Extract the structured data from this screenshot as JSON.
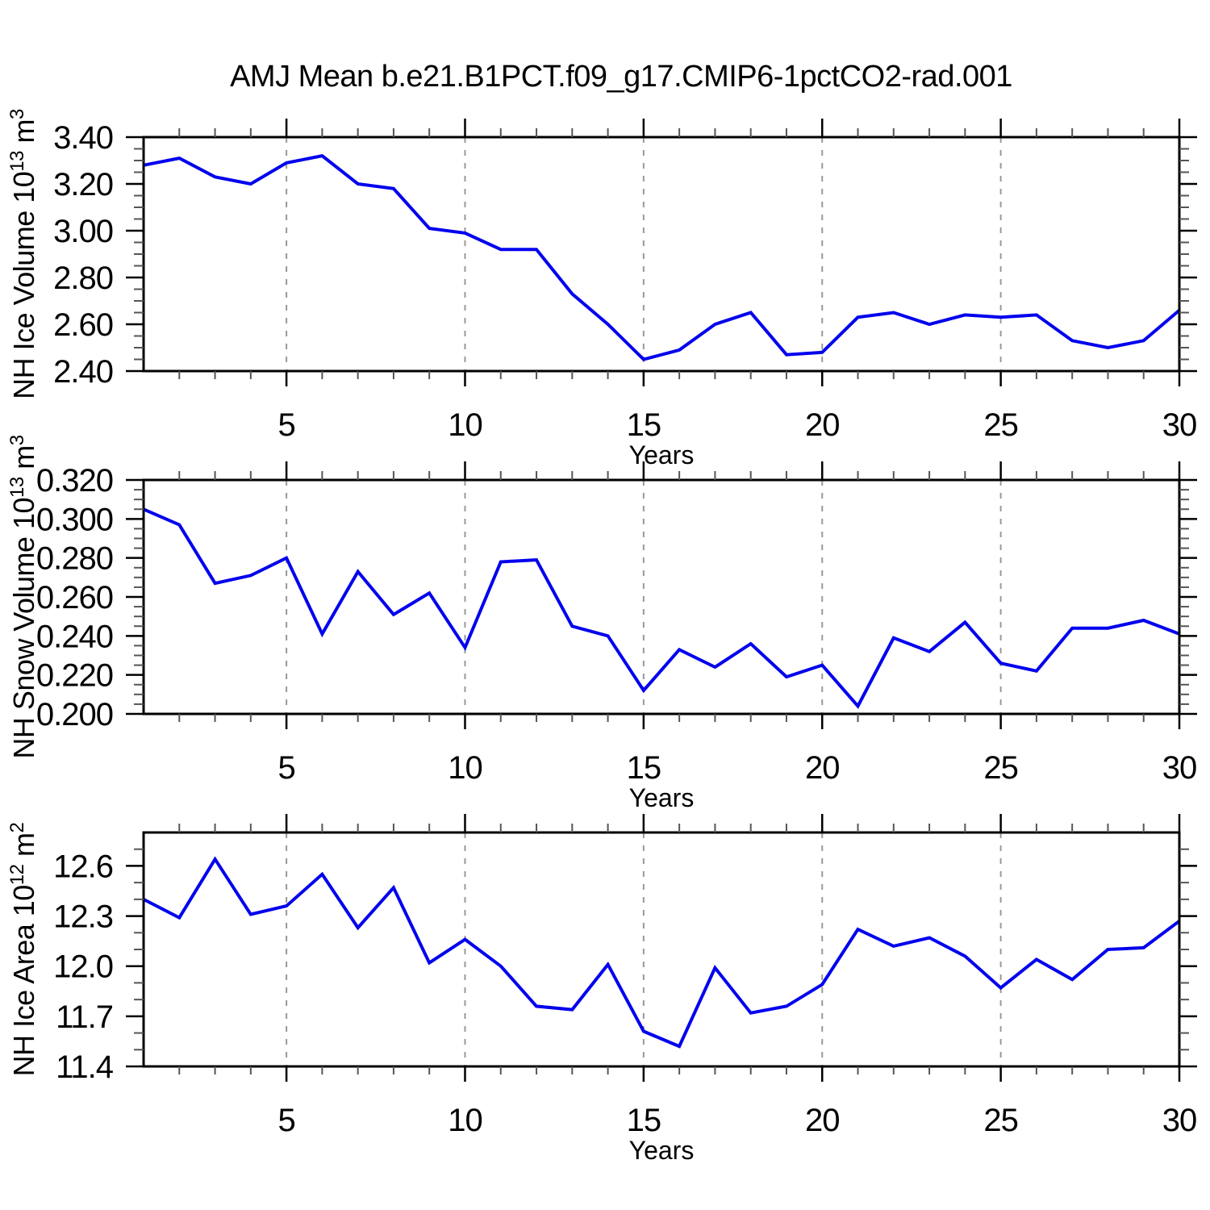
{
  "title": "AMJ Mean b.e21.B1PCT.f09_g17.CMIP6-1pctCO2-rad.001",
  "chart_data": [
    {
      "type": "line",
      "panel": "top",
      "ylabel": {
        "text": "NH Ice Volume 10",
        "exp": "13",
        "unit": " m",
        "unit_exp": "3"
      },
      "xlabel": "Years",
      "x": [
        1,
        2,
        3,
        4,
        5,
        6,
        7,
        8,
        9,
        10,
        11,
        12,
        13,
        14,
        15,
        16,
        17,
        18,
        19,
        20,
        21,
        22,
        23,
        24,
        25,
        26,
        27,
        28,
        29,
        30
      ],
      "values": [
        3.28,
        3.31,
        3.23,
        3.2,
        3.29,
        3.32,
        3.2,
        3.18,
        3.01,
        2.99,
        2.92,
        2.92,
        2.73,
        2.6,
        2.45,
        2.49,
        2.6,
        2.65,
        2.47,
        2.48,
        2.63,
        2.65,
        2.6,
        2.64,
        2.63,
        2.64,
        2.53,
        2.5,
        2.53,
        2.66
      ],
      "xlim": [
        1,
        30
      ],
      "ylim": [
        2.4,
        3.4
      ],
      "ytick_values": [
        3.4,
        3.2,
        3.0,
        2.8,
        2.6,
        2.4
      ],
      "ytick_labels": [
        "3.40",
        "3.20",
        "3.00",
        "2.80",
        "2.60",
        "2.40"
      ],
      "yminor_step": 0.05,
      "xtick_values": [
        5,
        10,
        15,
        20,
        25,
        30
      ],
      "xtick_labels": [
        "5",
        "10",
        "15",
        "20",
        "25",
        "30"
      ],
      "xminor_step": 1,
      "grid_x": [
        5,
        10,
        15,
        20,
        25
      ],
      "grid_style": "dashed-vertical",
      "legend": "none",
      "line_color": "#0000ee"
    },
    {
      "type": "line",
      "panel": "middle",
      "ylabel": {
        "text": "NH Snow Volume 10",
        "exp": "13",
        "unit": " m",
        "unit_exp": "3"
      },
      "xlabel": "Years",
      "x": [
        1,
        2,
        3,
        4,
        5,
        6,
        7,
        8,
        9,
        10,
        11,
        12,
        13,
        14,
        15,
        16,
        17,
        18,
        19,
        20,
        21,
        22,
        23,
        24,
        25,
        26,
        27,
        28,
        29,
        30
      ],
      "values": [
        0.305,
        0.297,
        0.267,
        0.271,
        0.28,
        0.241,
        0.273,
        0.251,
        0.262,
        0.234,
        0.278,
        0.279,
        0.245,
        0.24,
        0.212,
        0.233,
        0.224,
        0.236,
        0.219,
        0.225,
        0.204,
        0.239,
        0.232,
        0.247,
        0.226,
        0.222,
        0.244,
        0.244,
        0.248,
        0.241
      ],
      "xlim": [
        1,
        30
      ],
      "ylim": [
        0.2,
        0.32
      ],
      "ytick_values": [
        0.32,
        0.3,
        0.28,
        0.26,
        0.24,
        0.22,
        0.2
      ],
      "ytick_labels": [
        "0.320",
        "0.300",
        "0.280",
        "0.260",
        "0.240",
        "0.220",
        "0.200"
      ],
      "yminor_step": 0.005,
      "xtick_values": [
        5,
        10,
        15,
        20,
        25,
        30
      ],
      "xtick_labels": [
        "5",
        "10",
        "15",
        "20",
        "25",
        "30"
      ],
      "xminor_step": 1,
      "grid_x": [
        5,
        10,
        15,
        20,
        25
      ],
      "grid_style": "dashed-vertical",
      "legend": "none",
      "line_color": "#0000ee"
    },
    {
      "type": "line",
      "panel": "bottom",
      "ylabel": {
        "text": "NH Ice Area 10",
        "exp": "12",
        "unit": " m",
        "unit_exp": "2"
      },
      "xlabel": "Years",
      "x": [
        1,
        2,
        3,
        4,
        5,
        6,
        7,
        8,
        9,
        10,
        11,
        12,
        13,
        14,
        15,
        16,
        17,
        18,
        19,
        20,
        21,
        22,
        23,
        24,
        25,
        26,
        27,
        28,
        29,
        30
      ],
      "values": [
        12.4,
        12.29,
        12.64,
        12.31,
        12.36,
        12.55,
        12.23,
        12.47,
        12.02,
        12.16,
        12.0,
        11.76,
        11.74,
        12.01,
        11.61,
        11.52,
        11.99,
        11.72,
        11.76,
        11.89,
        12.22,
        12.12,
        12.17,
        12.06,
        11.87,
        12.04,
        11.92,
        12.1,
        12.11,
        12.27
      ],
      "xlim": [
        1,
        30
      ],
      "ylim": [
        11.4,
        12.8
      ],
      "ytick_values": [
        12.6,
        12.3,
        12.0,
        11.7,
        11.4
      ],
      "ytick_labels": [
        "12.6",
        "12.3",
        "12.0",
        "11.7",
        "11.4"
      ],
      "yminor_step": 0.1,
      "xtick_values": [
        5,
        10,
        15,
        20,
        25,
        30
      ],
      "xtick_labels": [
        "5",
        "10",
        "15",
        "20",
        "25",
        "30"
      ],
      "xminor_step": 1,
      "grid_x": [
        5,
        10,
        15,
        20,
        25
      ],
      "grid_style": "dashed-vertical",
      "legend": "none",
      "line_color": "#0000ee"
    }
  ]
}
